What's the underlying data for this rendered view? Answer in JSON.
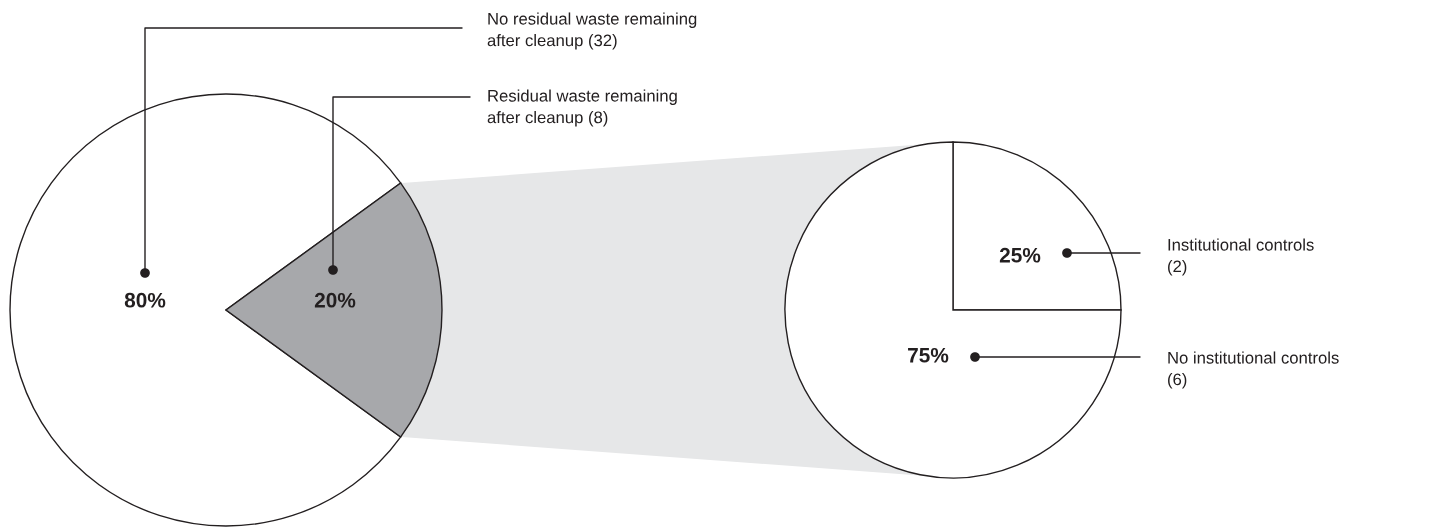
{
  "chart_data": [
    {
      "type": "pie",
      "categories": [
        "No residual waste remaining\nafter cleanup (32)",
        "Residual waste remaining\nafter cleanup (8)"
      ],
      "values": [
        80,
        20
      ],
      "value_labels": [
        "80%",
        "20%"
      ],
      "colors": [
        "#ffffff",
        "#a7a8ab"
      ]
    },
    {
      "type": "pie",
      "categories": [
        "Institutional controls\n(2)",
        "No institutional controls\n(6)"
      ],
      "values": [
        25,
        75
      ],
      "value_labels": [
        "25%",
        "75%"
      ],
      "colors": [
        "#ffffff",
        "#ffffff"
      ]
    }
  ]
}
